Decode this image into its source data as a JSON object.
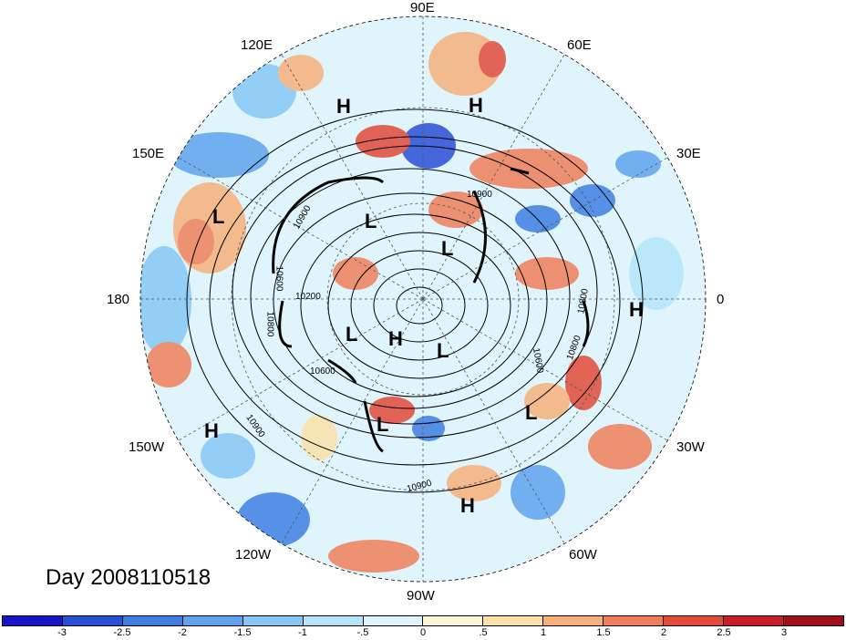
{
  "map": {
    "title": "Day 2008110518",
    "longitude_labels": [
      {
        "id": "lon-90e",
        "text": "90E"
      },
      {
        "id": "lon-60e",
        "text": "60E"
      },
      {
        "id": "lon-30e",
        "text": "30E"
      },
      {
        "id": "lon-0",
        "text": "0"
      },
      {
        "id": "lon-30w",
        "text": "30W"
      },
      {
        "id": "lon-60w",
        "text": "60W"
      },
      {
        "id": "lon-90w",
        "text": "90W"
      },
      {
        "id": "lon-120w",
        "text": "120W"
      },
      {
        "id": "lon-150w",
        "text": "150W"
      },
      {
        "id": "lon-180",
        "text": "180"
      },
      {
        "id": "lon-150e",
        "text": "150E"
      },
      {
        "id": "lon-120e",
        "text": "120E"
      }
    ],
    "pressure_centers": [
      "H",
      "H",
      "L",
      "L",
      "L",
      "H",
      "L",
      "H",
      "L",
      "L",
      "L",
      "H",
      "H"
    ],
    "contour_labels": [
      "10900",
      "10900",
      "10800",
      "10600",
      "10200",
      "10600",
      "10900",
      "10800",
      "10800",
      "10600",
      "10900"
    ],
    "colorbar": {
      "ticks": [
        "-3",
        "-2.5",
        "-2",
        "-1.5",
        "-1",
        "-.5",
        "0",
        ".5",
        "1",
        "1.5",
        "2",
        "2.5",
        "3"
      ],
      "colors": [
        "#1a14c8",
        "#2a4fd6",
        "#3f7fe3",
        "#5fa3ee",
        "#86c7f5",
        "#b4e6fa",
        "#e0f5fb",
        "#fdf6d8",
        "#fbe2a8",
        "#f6b07a",
        "#ef7f5a",
        "#e24a3a",
        "#c81e2a",
        "#a00f1c"
      ]
    },
    "colors": {
      "warm": "#e24a3a",
      "cool": "#3f7fe3",
      "neutral": "#e0f5fb"
    }
  }
}
